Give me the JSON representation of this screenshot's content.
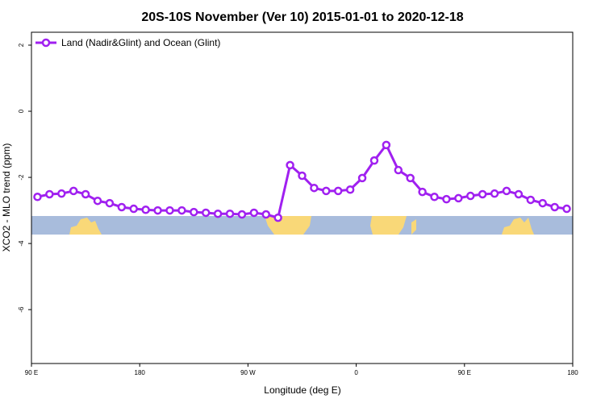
{
  "chart_data": {
    "type": "line",
    "title": "20S-10S November (Ver 10)   2015-01-01 to 2020-12-18",
    "x_label": "Longitude (deg E)",
    "y_label": "XCO2 - MLO trend (ppm)",
    "xlim": [
      90,
      540
    ],
    "ylim": [
      -7.63,
      2.39
    ],
    "xticks": [
      {
        "value": 90,
        "label": "90 E"
      },
      {
        "value": 180,
        "label": "180"
      },
      {
        "value": 270,
        "label": "90 W"
      },
      {
        "value": 360,
        "label": "0"
      },
      {
        "value": 450,
        "label": "90 E"
      },
      {
        "value": 540,
        "label": "180"
      }
    ],
    "yticks": [
      -6,
      -4,
      -2,
      0,
      2
    ],
    "legend_position": "top-left",
    "x": [
      95,
      105,
      115,
      125,
      135,
      145,
      155,
      165,
      175,
      185,
      195,
      205,
      215,
      225,
      235,
      245,
      255,
      265,
      275,
      285,
      295,
      305,
      315,
      325,
      335,
      345,
      355,
      365,
      375,
      385,
      395,
      405,
      415,
      425,
      435,
      445,
      455,
      465,
      475,
      485,
      495,
      505,
      515,
      525,
      535
    ],
    "series": [
      {
        "name": "Land (Nadir&Glint) and Ocean (Glint)",
        "color": "#a020f0",
        "values": [
          -2.59,
          -2.51,
          -2.49,
          -2.41,
          -2.51,
          -2.71,
          -2.78,
          -2.9,
          -2.95,
          -2.98,
          -3.0,
          -3.0,
          -3.0,
          -3.05,
          -3.07,
          -3.1,
          -3.1,
          -3.12,
          -3.07,
          -3.12,
          -3.22,
          -1.63,
          -1.95,
          -2.32,
          -2.41,
          -2.41,
          -2.37,
          -2.02,
          -1.49,
          -1.02,
          -1.78,
          -2.02,
          -2.44,
          -2.59,
          -2.66,
          -2.63,
          -2.56,
          -2.51,
          -2.49,
          -2.41,
          -2.51,
          -2.68,
          -2.78,
          -2.9,
          -2.95
        ]
      }
    ]
  }
}
